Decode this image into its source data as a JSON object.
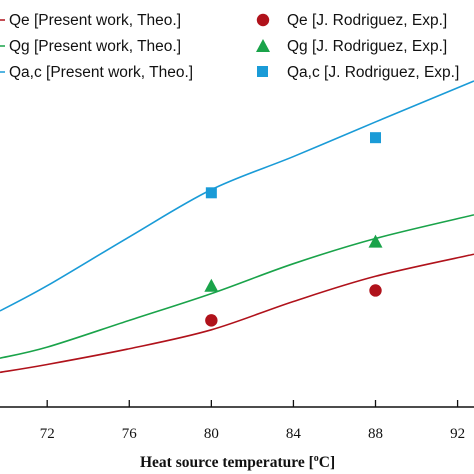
{
  "chart_data": {
    "type": "line",
    "title": "",
    "xlabel": "Heat source temperature [",
    "xlabel_sup": "o",
    "xlabel_suffix": "C]",
    "ylabel": "",
    "xlim": [
      69.7,
      92.8
    ],
    "ylim": [
      0,
      10
    ],
    "x_ticks": [
      72,
      76,
      80,
      84,
      88,
      92
    ],
    "x_tick_labels": [
      "72",
      "76",
      "80",
      "84",
      "88",
      "92"
    ],
    "grid": false,
    "legend_placement": "top",
    "series": [
      {
        "name": "Qe [Present work, Theo.]",
        "kind": "line",
        "color": "#b0121b",
        "x": [
          69.7,
          72,
          76,
          80,
          84,
          88,
          92.8
        ],
        "y": [
          1.1,
          1.35,
          1.85,
          2.45,
          3.35,
          4.15,
          4.85
        ]
      },
      {
        "name": "Qg [Present work, Theo.]",
        "kind": "line",
        "color": "#1aa34a",
        "x": [
          69.7,
          72,
          76,
          80,
          84,
          88,
          92.8
        ],
        "y": [
          1.55,
          1.9,
          2.75,
          3.6,
          4.55,
          5.35,
          6.1
        ]
      },
      {
        "name": "Qa,c [Present work, Theo.]",
        "kind": "line",
        "color": "#1a9bd7",
        "x": [
          69.7,
          72,
          76,
          80,
          84,
          88,
          92.8
        ],
        "y": [
          3.05,
          3.85,
          5.4,
          6.9,
          7.95,
          9.05,
          10.35
        ]
      },
      {
        "name": "Qe [J. Rodriguez, Exp.]",
        "kind": "scatter",
        "marker": "circle",
        "color": "#b0121b",
        "x": [
          80,
          88
        ],
        "y": [
          2.75,
          3.7
        ]
      },
      {
        "name": "Qg [J. Rodriguez, Exp.]",
        "kind": "scatter",
        "marker": "triangle",
        "color": "#1aa34a",
        "x": [
          80,
          88
        ],
        "y": [
          3.85,
          5.25
        ]
      },
      {
        "name": "Qa,c [J. Rodriguez, Exp.]",
        "kind": "scatter",
        "marker": "square",
        "color": "#1a9bd7",
        "x": [
          80,
          88
        ],
        "y": [
          6.8,
          8.55
        ]
      }
    ]
  }
}
